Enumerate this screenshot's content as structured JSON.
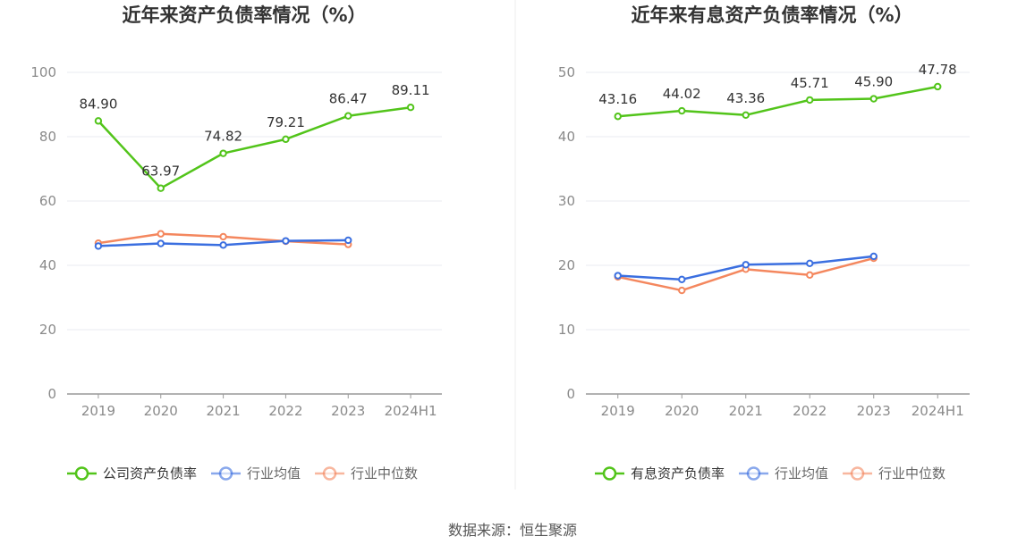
{
  "source": "数据来源：恒生聚源",
  "colors": {
    "company": "#52c41a",
    "industry_avg": "#3b6fe0",
    "industry_median": "#f4875e",
    "grid": "#e8ebf2",
    "axis": "#999999"
  },
  "chart_data": [
    {
      "type": "line",
      "title": "近年来资产负债率情况（%）",
      "categories": [
        "2019",
        "2020",
        "2021",
        "2022",
        "2023",
        "2024H1"
      ],
      "ylim": [
        0,
        100
      ],
      "yticks": [
        0,
        20,
        40,
        60,
        80,
        100
      ],
      "series": [
        {
          "name": "公司资产负债率",
          "color": "#52c41a",
          "values": [
            84.9,
            63.97,
            74.82,
            79.21,
            86.47,
            89.11
          ],
          "labels": [
            "84.90",
            "63.97",
            "74.82",
            "79.21",
            "86.47",
            "89.11"
          ],
          "show_labels": true
        },
        {
          "name": "行业均值",
          "color": "#3b6fe0",
          "values": [
            46.0,
            46.8,
            46.3,
            47.6,
            47.8,
            null
          ],
          "show_labels": false
        },
        {
          "name": "行业中位数",
          "color": "#f4875e",
          "values": [
            46.9,
            49.8,
            48.9,
            47.5,
            46.5,
            null
          ],
          "show_labels": false
        }
      ]
    },
    {
      "type": "line",
      "title": "近年来有息资产负债率情况（%）",
      "categories": [
        "2019",
        "2020",
        "2021",
        "2022",
        "2023",
        "2024H1"
      ],
      "ylim": [
        0,
        50
      ],
      "yticks": [
        0,
        10,
        20,
        30,
        40,
        50
      ],
      "series": [
        {
          "name": "有息资产负债率",
          "color": "#52c41a",
          "values": [
            43.16,
            44.02,
            43.36,
            45.71,
            45.9,
            47.78
          ],
          "labels": [
            "43.16",
            "44.02",
            "43.36",
            "45.71",
            "45.90",
            "47.78"
          ],
          "show_labels": true
        },
        {
          "name": "行业均值",
          "color": "#3b6fe0",
          "values": [
            18.4,
            17.8,
            20.1,
            20.3,
            21.4,
            null
          ],
          "show_labels": false
        },
        {
          "name": "行业中位数",
          "color": "#f4875e",
          "values": [
            18.2,
            16.1,
            19.4,
            18.5,
            21.1,
            null
          ],
          "show_labels": false
        }
      ]
    }
  ]
}
